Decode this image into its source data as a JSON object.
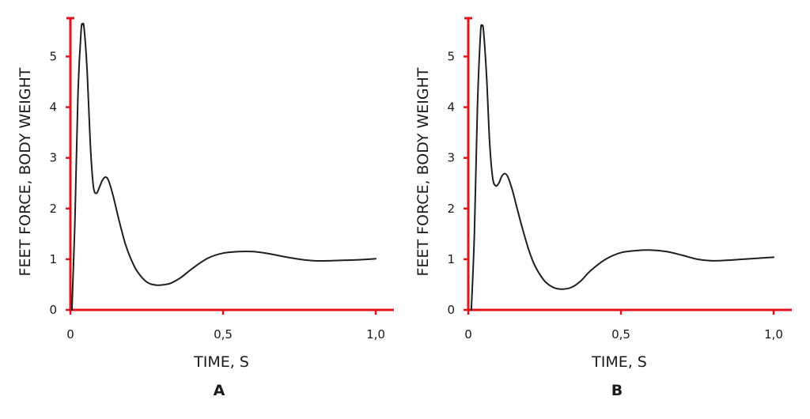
{
  "colors": {
    "axis": "#e3131b",
    "curve": "#1f1f1f",
    "text": "#1a1a1a"
  },
  "chart_data": [
    {
      "type": "line",
      "panel_label": "A",
      "xlabel": "TIME, S",
      "ylabel": "FEET FORCE, BODY WEIGHT",
      "xlim": [
        0,
        1.05
      ],
      "ylim": [
        0,
        5.75
      ],
      "xticks": [
        {
          "value": 0,
          "label": "0"
        },
        {
          "value": 0.5,
          "label": "0,5"
        },
        {
          "value": 1.0,
          "label": "1,0"
        }
      ],
      "yticks": [
        {
          "value": 0,
          "label": "0"
        },
        {
          "value": 1,
          "label": "1"
        },
        {
          "value": 2,
          "label": "2"
        },
        {
          "value": 3,
          "label": "3"
        },
        {
          "value": 4,
          "label": "4"
        },
        {
          "value": 5,
          "label": "5"
        }
      ],
      "grid": false,
      "series": [
        {
          "x": [
            0.005,
            0.015,
            0.025,
            0.035,
            0.04,
            0.045,
            0.055,
            0.065,
            0.075,
            0.085,
            0.095,
            0.105,
            0.115,
            0.125,
            0.14,
            0.16,
            0.18,
            0.2,
            0.22,
            0.25,
            0.28,
            0.31,
            0.33,
            0.36,
            0.4,
            0.45,
            0.5,
            0.55,
            0.6,
            0.65,
            0.7,
            0.75,
            0.8,
            0.85,
            0.9,
            0.95,
            1.0
          ],
          "y": [
            0.0,
            1.8,
            4.3,
            5.5,
            5.63,
            5.55,
            4.7,
            3.3,
            2.45,
            2.3,
            2.42,
            2.56,
            2.62,
            2.55,
            2.25,
            1.75,
            1.3,
            0.98,
            0.75,
            0.55,
            0.49,
            0.5,
            0.53,
            0.63,
            0.82,
            1.02,
            1.12,
            1.15,
            1.15,
            1.11,
            1.05,
            1.0,
            0.97,
            0.97,
            0.98,
            0.99,
            1.01
          ]
        }
      ]
    },
    {
      "type": "line",
      "panel_label": "B",
      "xlabel": "TIME, S",
      "ylabel": "FEET FORCE, BODY WEIGHT",
      "xlim": [
        0,
        1.05
      ],
      "ylim": [
        0,
        5.75
      ],
      "xticks": [
        {
          "value": 0,
          "label": "0"
        },
        {
          "value": 0.5,
          "label": "0,5"
        },
        {
          "value": 1.0,
          "label": "1,0"
        }
      ],
      "yticks": [
        {
          "value": 0,
          "label": "0"
        },
        {
          "value": 1,
          "label": "1"
        },
        {
          "value": 2,
          "label": "2"
        },
        {
          "value": 3,
          "label": "3"
        },
        {
          "value": 4,
          "label": "4"
        },
        {
          "value": 5,
          "label": "5"
        }
      ],
      "grid": false,
      "series": [
        {
          "x": [
            0.01,
            0.02,
            0.03,
            0.04,
            0.045,
            0.05,
            0.06,
            0.07,
            0.08,
            0.09,
            0.1,
            0.11,
            0.12,
            0.13,
            0.145,
            0.16,
            0.18,
            0.2,
            0.22,
            0.25,
            0.28,
            0.31,
            0.34,
            0.37,
            0.4,
            0.45,
            0.5,
            0.55,
            0.6,
            0.65,
            0.7,
            0.75,
            0.8,
            0.85,
            0.9,
            0.95,
            1.0
          ],
          "y": [
            0.0,
            1.5,
            4.0,
            5.45,
            5.6,
            5.5,
            4.6,
            3.3,
            2.6,
            2.45,
            2.5,
            2.64,
            2.69,
            2.62,
            2.35,
            2.0,
            1.55,
            1.15,
            0.85,
            0.57,
            0.44,
            0.41,
            0.45,
            0.58,
            0.77,
            1.0,
            1.13,
            1.17,
            1.18,
            1.15,
            1.08,
            1.0,
            0.97,
            0.98,
            1.0,
            1.02,
            1.04
          ]
        }
      ]
    }
  ]
}
